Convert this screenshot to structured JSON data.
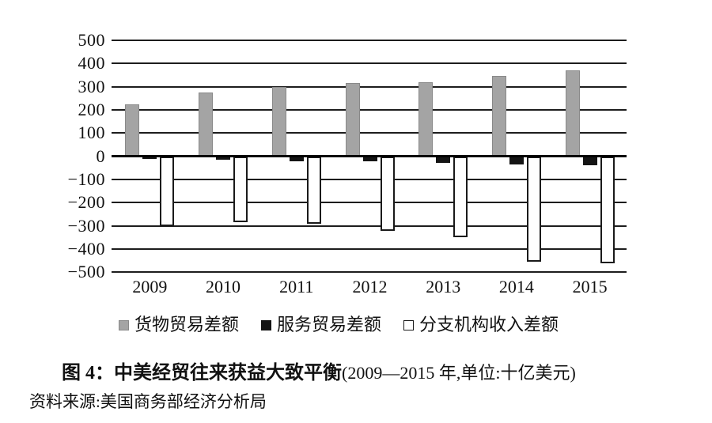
{
  "chart_data": {
    "type": "bar",
    "title": "中美经贸往来获益大致平衡",
    "title_full": "图 4：中美经贸往来获益大致平衡(2009—2015 年,单位:十亿美元)",
    "unit": "十亿美元",
    "categories": [
      "2009",
      "2010",
      "2011",
      "2012",
      "2013",
      "2014",
      "2015"
    ],
    "series": [
      {
        "key": "goods-trade-balance",
        "name": "货物贸易差额",
        "color": "#a4a4a4",
        "border_color": "#898989",
        "border_px": 1,
        "values": [
          225,
          275,
          300,
          315,
          320,
          345,
          370
        ]
      },
      {
        "key": "services-trade-balance",
        "name": "服务贸易差额",
        "color": "#141414",
        "border_color": "#141414",
        "border_px": 0,
        "values": [
          -10,
          -15,
          -20,
          -20,
          -30,
          -35,
          -40
        ]
      },
      {
        "key": "branch-income-balance",
        "name": "分支机构收入差额",
        "color": "#ffffff",
        "border_color": "#1a1a1a",
        "border_px": 2,
        "values": [
          -300,
          -285,
          -290,
          -320,
          -350,
          -455,
          -460
        ]
      }
    ],
    "ylim": [
      -500,
      500
    ],
    "yticks": [
      500,
      400,
      300,
      200,
      100,
      0,
      -100,
      -200,
      -300,
      -400,
      -500
    ],
    "grid": true,
    "legend_position": "bottom"
  },
  "caption": {
    "figure_label_bold": "图 4：中美经贸往来获益大致平衡",
    "figure_paren": "(2009—2015 年,单位:十亿美元)"
  },
  "source": {
    "text": "资料来源:美国商务部经济分析局"
  }
}
